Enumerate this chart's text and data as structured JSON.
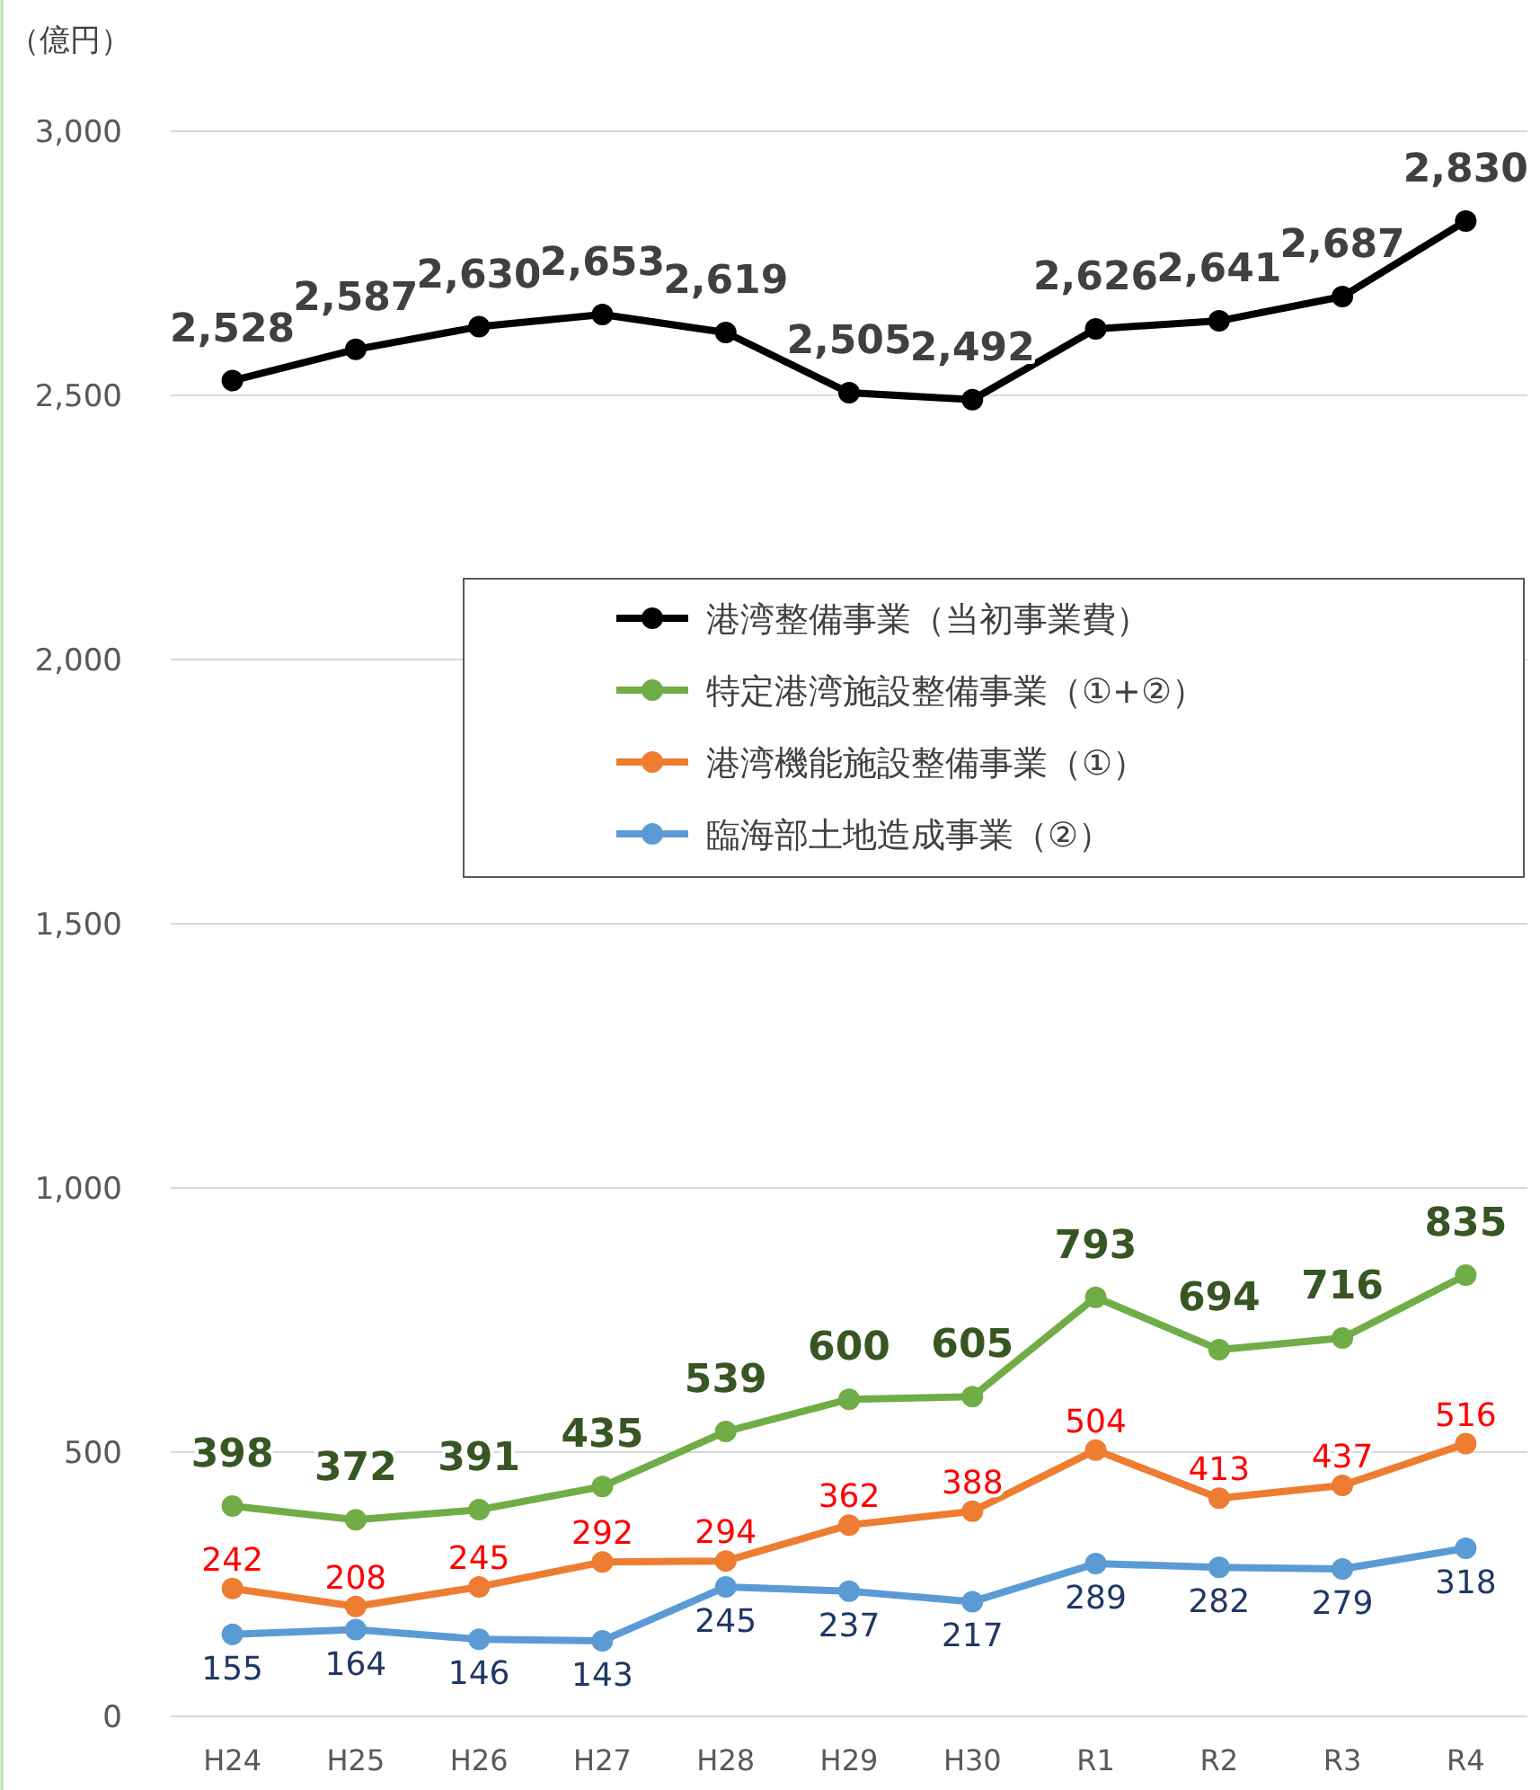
{
  "chart_data": {
    "type": "line",
    "ylabel": "（億円）",
    "categories": [
      "H24",
      "H25",
      "H26",
      "H27",
      "H28",
      "H29",
      "H30",
      "R1",
      "R2",
      "R3",
      "R4"
    ],
    "ylim": [
      0,
      3000
    ],
    "yticks": [
      0,
      {
        "value": 500,
        "label": "500"
      },
      {
        "value": 1000,
        "label": "1,000"
      },
      {
        "value": 1500,
        "label": "1,500"
      },
      {
        "value": 2000,
        "label": "2,000"
      },
      {
        "value": 2500,
        "label": "2,500"
      },
      {
        "value": 3000,
        "label": "3,000"
      }
    ],
    "grid": "y",
    "legend": "right",
    "marker": "circle",
    "line_style": "solid",
    "series": [
      {
        "name": "港湾整備事業（当初事業費）",
        "color": "#000000",
        "values": [
          2528,
          2587,
          2630,
          2653,
          2619,
          2505,
          2492,
          2626,
          2641,
          2687,
          2830
        ],
        "value_labels": [
          "2,528",
          "2,587",
          "2,630",
          "2,653",
          "2,619",
          "2,505",
          "2,492",
          "2,626",
          "2,641",
          "2,687",
          "2,830"
        ]
      },
      {
        "name": "特定港湾施設整備事業（①+②）",
        "color": "#70ad47",
        "values": [
          398,
          372,
          391,
          435,
          539,
          600,
          605,
          793,
          694,
          716,
          835
        ],
        "value_labels": [
          "398",
          "372",
          "391",
          "435",
          "539",
          "600",
          "605",
          "793",
          "694",
          "716",
          "835"
        ]
      },
      {
        "name": "港湾機能施設整備事業（①）",
        "color": "#ed7d31",
        "values": [
          242,
          208,
          245,
          292,
          294,
          362,
          388,
          504,
          413,
          437,
          516
        ],
        "value_labels": [
          "242",
          "208",
          "245",
          "292",
          "294",
          "362",
          "388",
          "504",
          "413",
          "437",
          "516"
        ]
      },
      {
        "name": "臨海部土地造成事業（②）",
        "color": "#5b9bd5",
        "values": [
          155,
          164,
          146,
          143,
          245,
          237,
          217,
          289,
          282,
          279,
          318
        ],
        "value_labels": [
          "155",
          "164",
          "146",
          "143",
          "245",
          "237",
          "217",
          "289",
          "282",
          "279",
          "318"
        ]
      }
    ]
  }
}
